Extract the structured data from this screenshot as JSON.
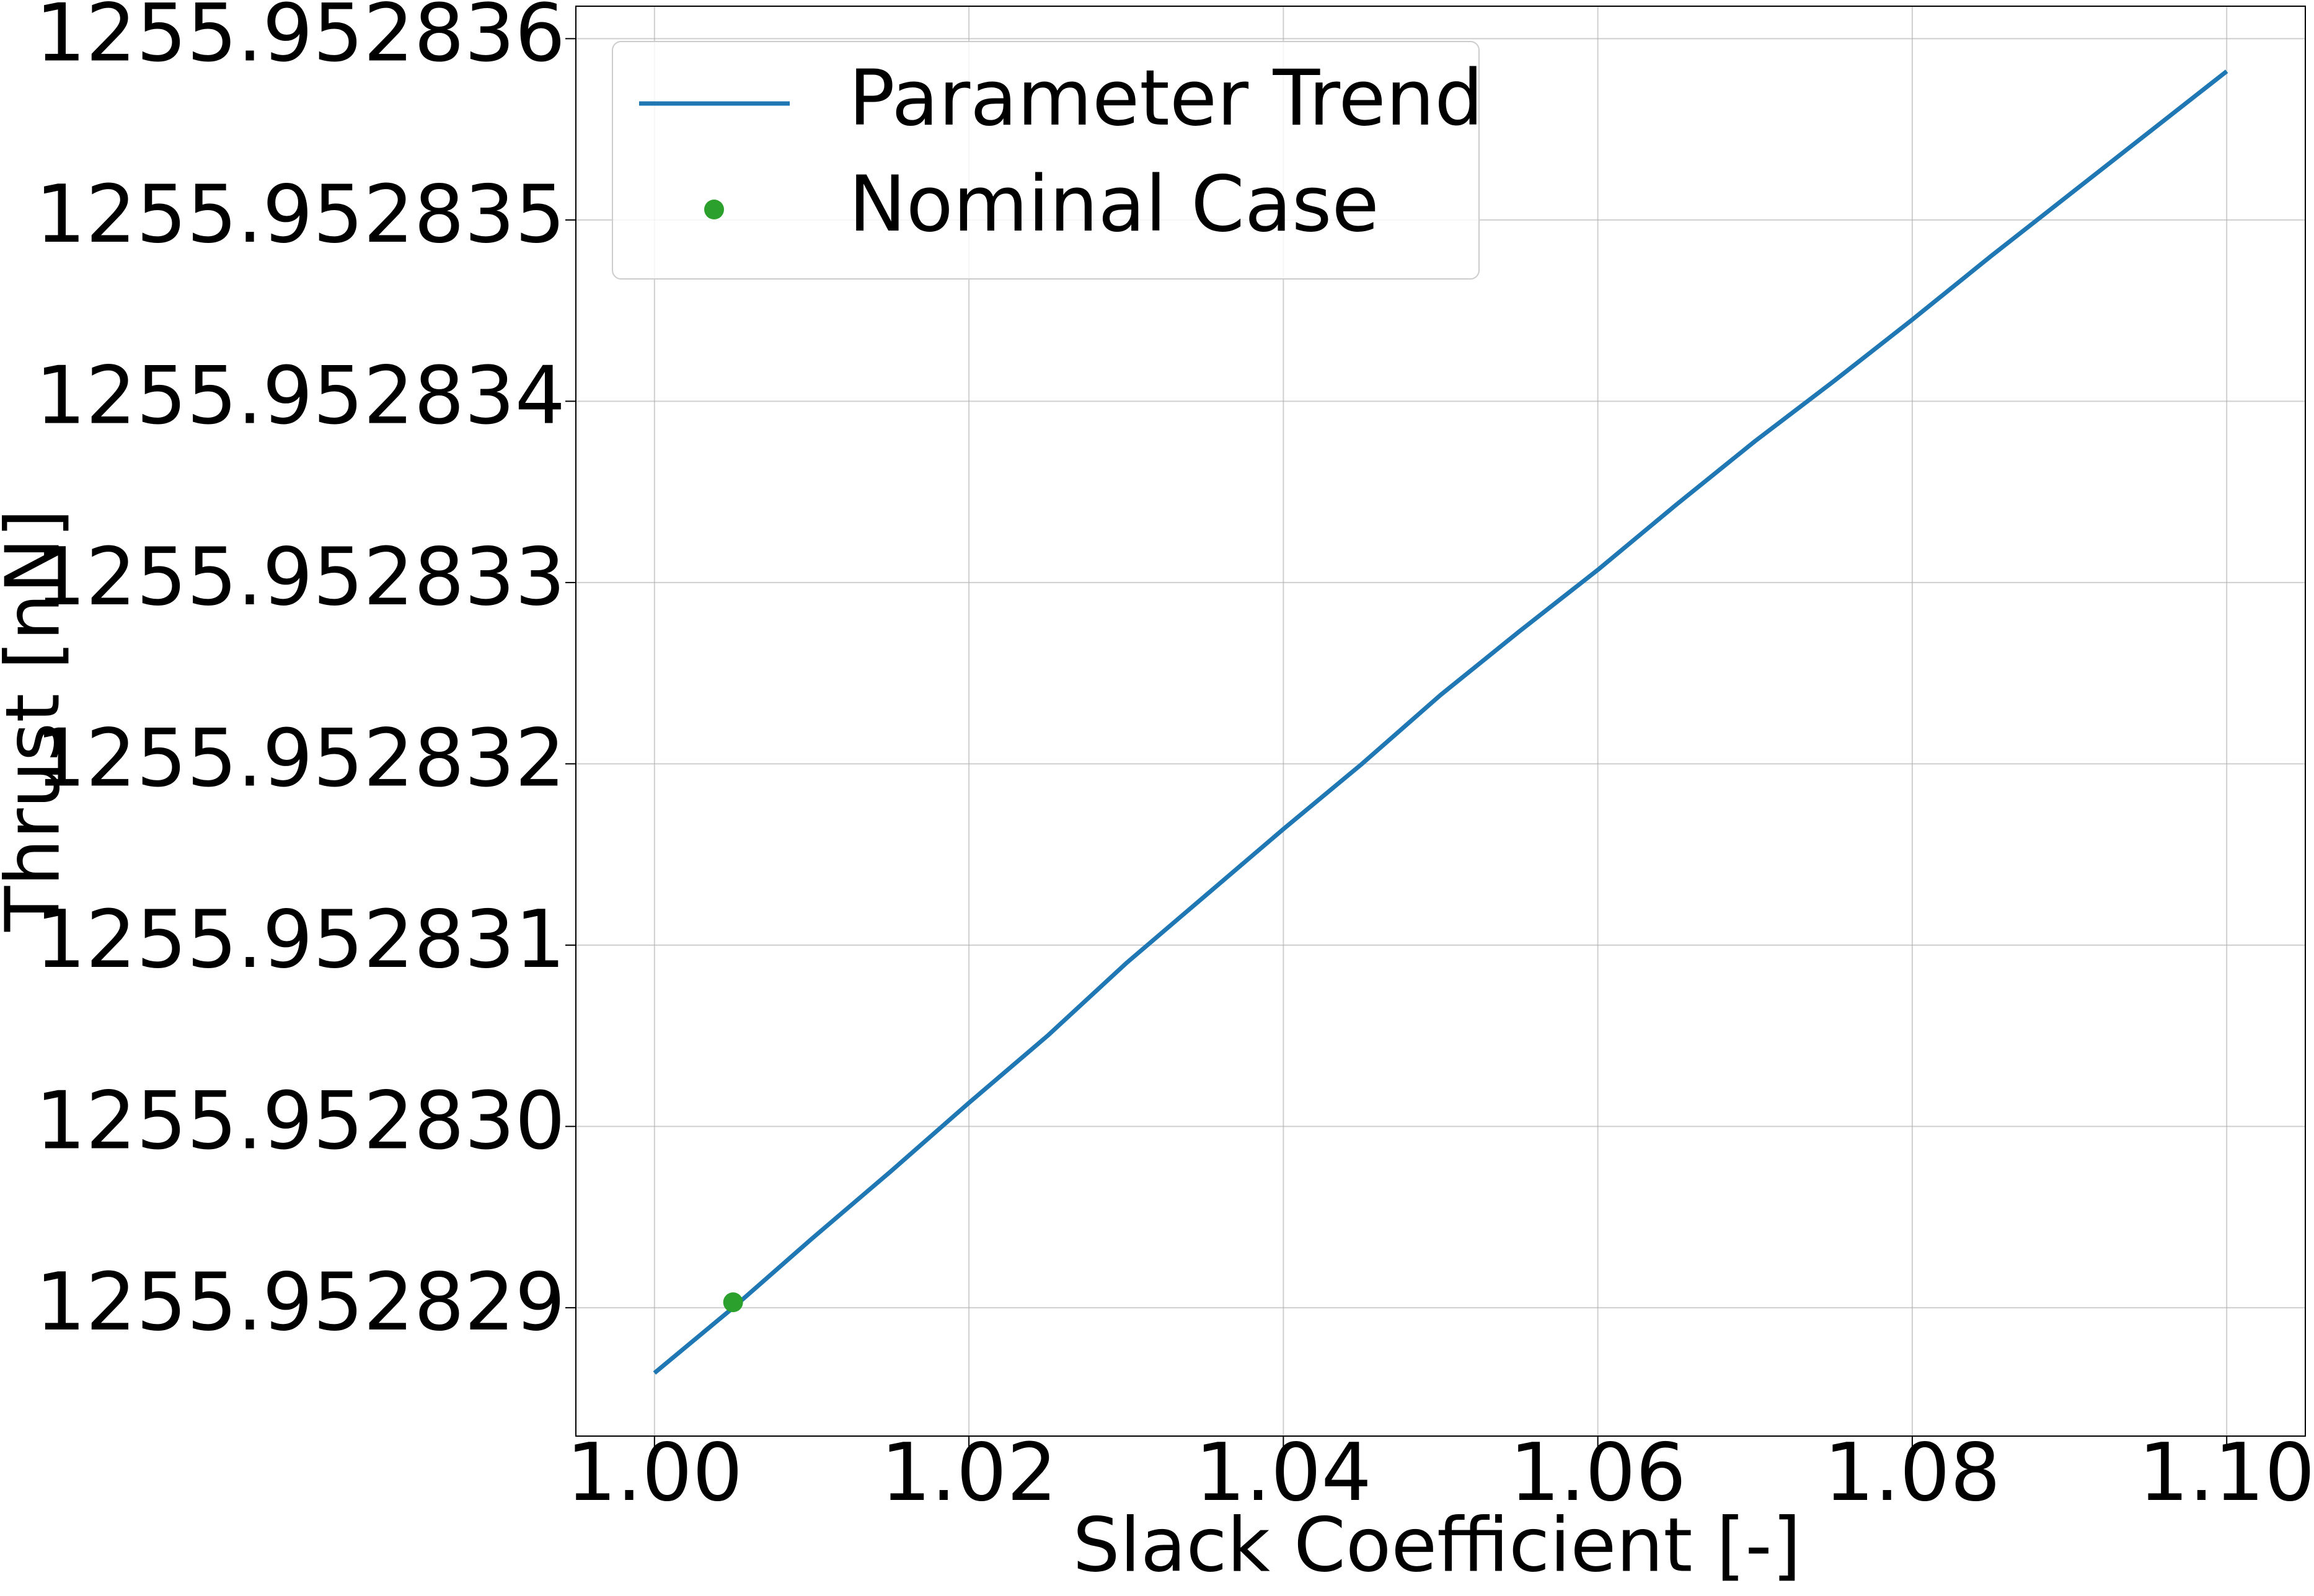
{
  "chart_data": {
    "type": "line",
    "x_label": "Slack Coefficient [-]",
    "y_label": "Thrust [nN]",
    "x": [
      1.0,
      1.005,
      1.01,
      1.015,
      1.02,
      1.025,
      1.03,
      1.035,
      1.04,
      1.045,
      1.05,
      1.055,
      1.06,
      1.065,
      1.07,
      1.075,
      1.08,
      1.085,
      1.09,
      1.095,
      1.1
    ],
    "series": [
      {
        "name": "Parameter Trend",
        "color": "#1f77b4",
        "values": [
          1255.95282864,
          1255.952829,
          1255.95282938,
          1255.95282975,
          1255.95283013,
          1255.9528305,
          1255.9528309,
          1255.95283127,
          1255.95283164,
          1255.952832,
          1255.95283238,
          1255.95283273,
          1255.95283307,
          1255.95283343,
          1255.95283378,
          1255.95283411,
          1255.95283445,
          1255.9528348,
          1255.95283514,
          1255.95283548,
          1255.95283582
        ]
      },
      {
        "name": "Nominal Case",
        "color": "#2ca02c",
        "type": "scatter",
        "x": [
          1.005
        ],
        "values": [
          1255.95282903
        ]
      }
    ],
    "xlim": [
      0.995,
      1.105
    ],
    "xticks": [
      {
        "value": 1.0,
        "label": "1.00"
      },
      {
        "value": 1.02,
        "label": "1.02"
      },
      {
        "value": 1.04,
        "label": "1.04"
      },
      {
        "value": 1.06,
        "label": "1.06"
      },
      {
        "value": 1.08,
        "label": "1.08"
      },
      {
        "value": 1.1,
        "label": "1.10"
      }
    ],
    "ylim": [
      1255.952828292,
      1255.952836179
    ],
    "yticks": [
      1255.952829,
      {
        "value": 1255.95283,
        "label": "1255.952830"
      },
      1255.952831,
      1255.952832,
      1255.952833,
      1255.952834,
      1255.952835,
      1255.952836
    ],
    "grid": true,
    "legend": "upper left"
  }
}
